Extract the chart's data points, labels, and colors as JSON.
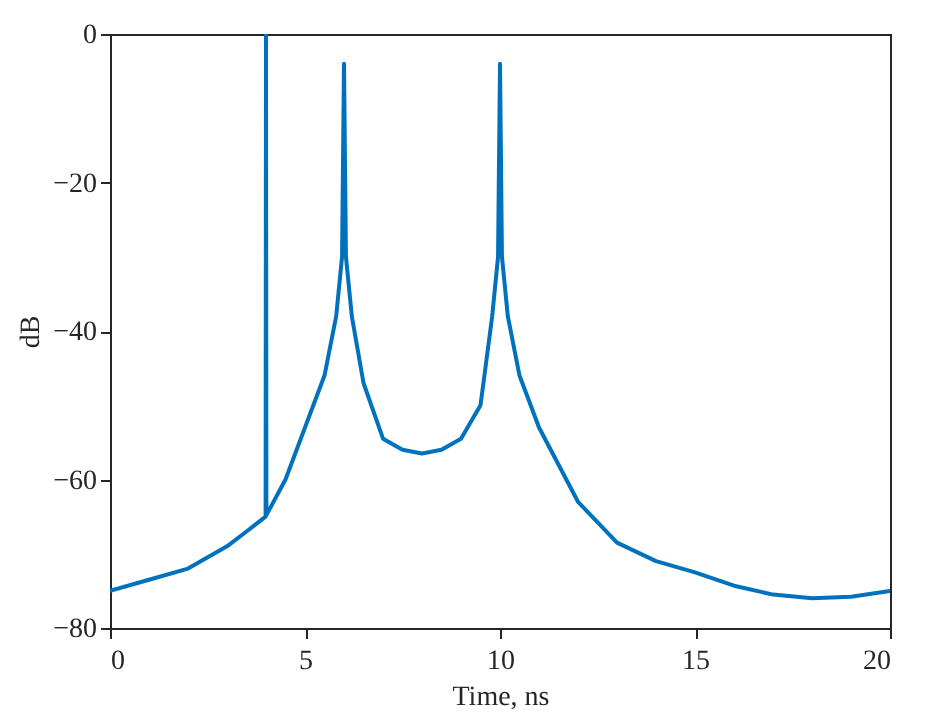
{
  "chart_data": {
    "type": "line",
    "xlabel": "Time, ns",
    "ylabel": "dB",
    "xlim": [
      0,
      20
    ],
    "ylim": [
      -80,
      0
    ],
    "xticks": [
      0,
      5,
      10,
      15,
      20
    ],
    "yticks": [
      -80,
      -60,
      -40,
      -20,
      0
    ],
    "grid": false,
    "series": [
      {
        "color": "#0072bd",
        "x": [
          0,
          1,
          2,
          3,
          3.5,
          3.99,
          4,
          4.01,
          4.5,
          5,
          5.5,
          5.8,
          5.95,
          6,
          6.05,
          6.2,
          6.5,
          7,
          7.5,
          8,
          8.5,
          9,
          9.5,
          9.8,
          9.95,
          10,
          10.05,
          10.2,
          10.5,
          11,
          12,
          13,
          14,
          15,
          16,
          17,
          18,
          19,
          20
        ],
        "values": [
          -75,
          -73.5,
          -72,
          -69,
          -67,
          -65,
          0,
          -64.8,
          -60,
          -53,
          -46,
          -38,
          -30,
          -4,
          -30,
          -38,
          -47,
          -54.5,
          -56,
          -56.5,
          -56,
          -54.5,
          -50,
          -38,
          -30,
          -4,
          -30,
          -38,
          -46,
          -53,
          -63,
          -68.5,
          -71,
          -72.5,
          -74.3,
          -75.5,
          -76,
          -75.8,
          -75
        ]
      }
    ]
  }
}
